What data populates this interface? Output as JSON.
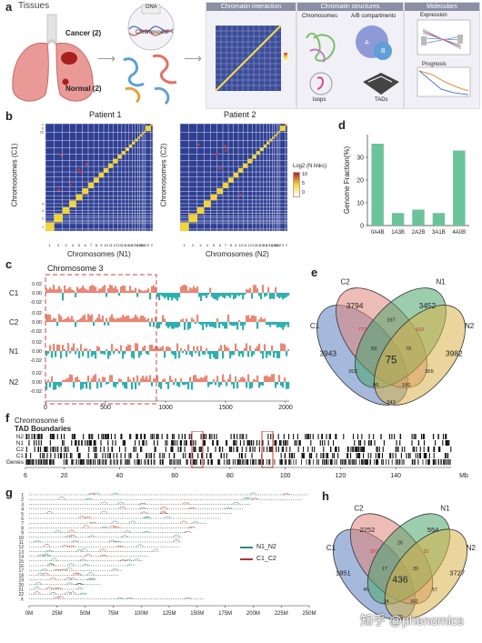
{
  "panel_a": {
    "label": "a",
    "tissues": "Tissues",
    "cancer": "Cancer (2)",
    "normal": "Normal (2)",
    "dna": "DNA",
    "chromosome": "Chromosome",
    "col_headers": [
      "Chromatin interaction",
      "Chromatin structures",
      "Moleculars"
    ],
    "chromosomes": "Chromosomes",
    "ab": "A/B compartments",
    "expression": "Expression",
    "prognosis": "Prognosis",
    "loops": "loops",
    "tads": "TADs"
  },
  "panel_b": {
    "label": "b",
    "patient1": "Patient 1",
    "patient2": "Patient 2",
    "ylabel1": "Chromosomes (C1)",
    "ylabel2": "Chromosomes (C2)",
    "xlabel1": "Chromosomes (N1)",
    "xlabel2": "Chromosomes (N2)",
    "legend_title": "Log2 (N links)",
    "legend_ticks": [
      "10",
      "5",
      "0"
    ],
    "xticks": [
      "1",
      "2",
      "3",
      "4",
      "5",
      "6",
      "7",
      "8",
      "9",
      "10",
      "11",
      "12",
      "13",
      "14",
      "15",
      "16",
      "17",
      "18",
      "19",
      "20",
      "21",
      "22",
      "X",
      "Y"
    ]
  },
  "panel_c": {
    "label": "c",
    "title": "Chromosome 3",
    "tracks": [
      "C1",
      "C2",
      "N1",
      "N2"
    ],
    "yticks": [
      "0.02",
      "0.00",
      "-0.02"
    ],
    "xticks": [
      "0",
      "500",
      "1000",
      "1500",
      "2000"
    ]
  },
  "panel_d": {
    "label": "d",
    "chart_data": {
      "type": "bar",
      "categories": [
        "0A4B",
        "1A3B",
        "2A2B",
        "3A1B",
        "4A0B"
      ],
      "values": [
        36,
        5.5,
        7,
        5.5,
        33
      ],
      "ylabel": "Genome Fraction(%)",
      "ylim": [
        0,
        40
      ],
      "yticks": [
        "0",
        "10",
        "20",
        "30"
      ],
      "color": "#6cc39a"
    }
  },
  "panel_e": {
    "label": "e",
    "sets": [
      "C1",
      "C2",
      "N1",
      "N2"
    ],
    "values": [
      "3794",
      "3452",
      "3943",
      "3982",
      "773",
      "197",
      "432",
      "93",
      "79",
      "202",
      "75",
      "365",
      "86",
      "181",
      "343"
    ]
  },
  "panel_f": {
    "label": "f",
    "title": "Chromosome 6",
    "subtitle": "TAD Boundaries",
    "tracks": [
      "N2",
      "N1",
      "C2",
      "C1",
      "Genes"
    ],
    "xticks": [
      "6",
      "20",
      "40",
      "60",
      "80",
      "100",
      "120",
      "140"
    ],
    "unit": "Mb"
  },
  "panel_g": {
    "label": "g",
    "yticks": [
      "1",
      "2",
      "3",
      "4",
      "5",
      "6",
      "7",
      "8",
      "9",
      "10",
      "11",
      "12",
      "13",
      "14",
      "15",
      "16",
      "17",
      "18",
      "19",
      "20",
      "21",
      "22",
      "X"
    ],
    "xticks": [
      "0M",
      "25M",
      "50M",
      "75M",
      "100M",
      "125M",
      "150M",
      "175M",
      "200M",
      "225M",
      "250M"
    ],
    "legend": [
      {
        "label": "N1_N2",
        "color": "#2e8b7a"
      },
      {
        "label": "C1_C2",
        "color": "#b5322f"
      }
    ]
  },
  "panel_h": {
    "label": "h",
    "sets": [
      "C1",
      "C2",
      "N1",
      "N2"
    ],
    "values": [
      "2252",
      "554",
      "1851",
      "3727",
      "307",
      "26",
      "32",
      "17",
      "20",
      "45",
      "436",
      "57",
      "24",
      "302",
      "29"
    ]
  },
  "watermark": "知乎 @phenomics"
}
